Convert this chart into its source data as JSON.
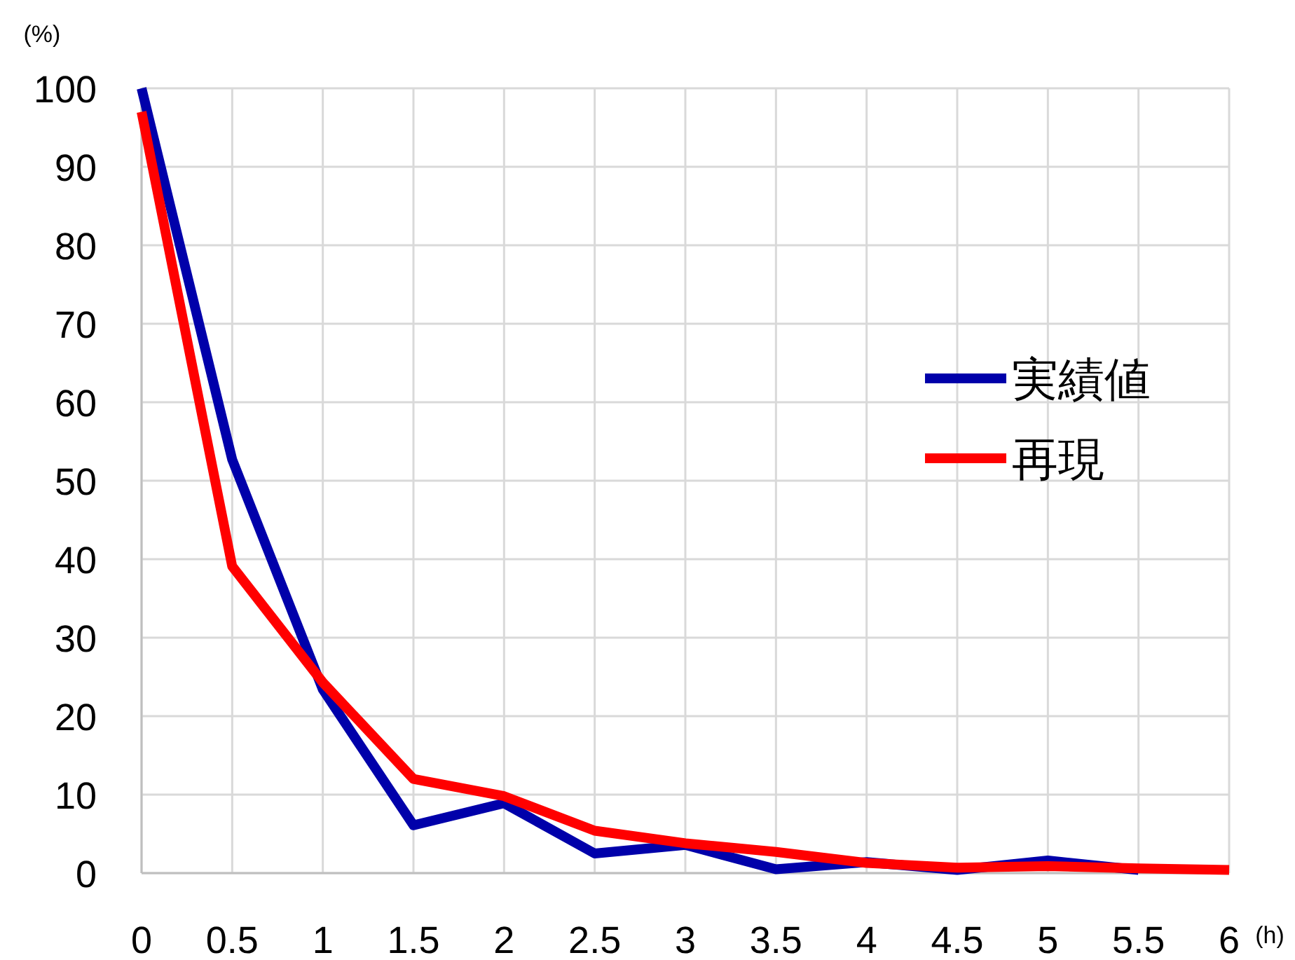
{
  "chart_data": {
    "type": "line",
    "xlabel": "(h)",
    "ylabel": "(%)",
    "x": [
      0,
      0.5,
      1,
      1.5,
      2,
      2.5,
      3,
      3.5,
      4,
      4.5,
      5,
      5.5,
      6
    ],
    "series": [
      {
        "name": "実績値",
        "color": "#0000aa",
        "values": [
          100,
          52.7,
          23.4,
          6.1,
          8.9,
          2.5,
          3.6,
          0.5,
          1.4,
          0.4,
          1.6,
          0.4,
          null
        ]
      },
      {
        "name": "再現",
        "color": "#ff0000",
        "values": [
          97,
          39.1,
          24.3,
          12,
          9.8,
          5.4,
          3.8,
          2.7,
          1.3,
          0.7,
          0.9,
          0.6,
          0.4
        ]
      }
    ],
    "xlim": [
      0,
      6
    ],
    "ylim": [
      0,
      100
    ],
    "xticks": [
      0,
      0.5,
      1,
      1.5,
      2,
      2.5,
      3,
      3.5,
      4,
      4.5,
      5,
      5.5,
      6
    ],
    "yticks": [
      0,
      10,
      20,
      30,
      40,
      50,
      60,
      70,
      80,
      90,
      100
    ],
    "grid": true,
    "legend": "right",
    "marker": "none",
    "line_style": "solid"
  }
}
